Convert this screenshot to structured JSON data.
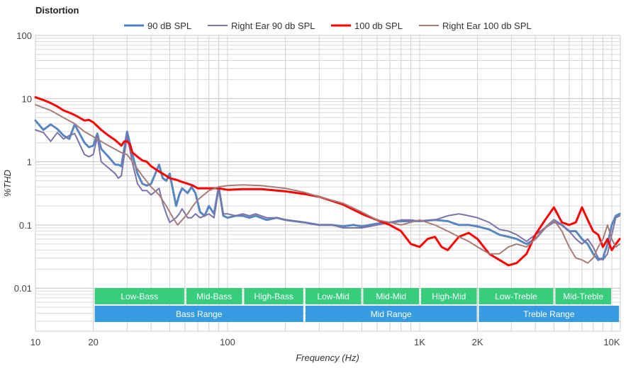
{
  "chart_data": {
    "type": "line",
    "title": "Distortion",
    "xlabel": "Frequency (Hz)",
    "ylabel": "%THD",
    "xscale": "log",
    "yscale": "log",
    "xlim": [
      10,
      11000
    ],
    "ylim": [
      0.002,
      100
    ],
    "grid": true,
    "legend_position": "top-center",
    "x_ticks": [
      {
        "value": 10,
        "label": "10"
      },
      {
        "value": 20,
        "label": "20"
      },
      {
        "value": 100,
        "label": "100"
      },
      {
        "value": 1000,
        "label": "1K"
      },
      {
        "value": 2000,
        "label": "2K"
      },
      {
        "value": 10000,
        "label": "10K"
      }
    ],
    "y_ticks": [
      {
        "value": 100,
        "label": "100"
      },
      {
        "value": 10,
        "label": "10"
      },
      {
        "value": 1,
        "label": "1"
      },
      {
        "value": 0.1,
        "label": "0.1"
      },
      {
        "value": 0.01,
        "label": "0.01"
      }
    ],
    "bands": [
      {
        "label": "Low-Bass",
        "from": 20,
        "to": 60,
        "row": 1,
        "color": "#33cc7a"
      },
      {
        "label": "Mid-Bass",
        "from": 60,
        "to": 120,
        "row": 1,
        "color": "#33cc7a"
      },
      {
        "label": "High-Bass",
        "from": 120,
        "to": 250,
        "row": 1,
        "color": "#33cc7a"
      },
      {
        "label": "Low-Mid",
        "from": 250,
        "to": 500,
        "row": 1,
        "color": "#33cc7a"
      },
      {
        "label": "Mid-Mid",
        "from": 500,
        "to": 1000,
        "row": 1,
        "color": "#33cc7a"
      },
      {
        "label": "High-Mid",
        "from": 1000,
        "to": 2000,
        "row": 1,
        "color": "#33cc7a"
      },
      {
        "label": "Low-Treble",
        "from": 2000,
        "to": 5000,
        "row": 1,
        "color": "#33cc7a"
      },
      {
        "label": "Mid-Treble",
        "from": 5000,
        "to": 10000,
        "row": 1,
        "color": "#33cc7a"
      },
      {
        "label": "Bass Range",
        "from": 20,
        "to": 250,
        "row": 2,
        "color": "#3399e0"
      },
      {
        "label": "Mid Range",
        "from": 250,
        "to": 2000,
        "row": 2,
        "color": "#3399e0"
      },
      {
        "label": "Treble Range",
        "from": 2000,
        "to": 11000,
        "row": 2,
        "color": "#3399e0"
      }
    ],
    "series": [
      {
        "name": "90 dB SPL",
        "color": "#4f81bd",
        "width": 3,
        "x": [
          10,
          11,
          12,
          13,
          14,
          15,
          16,
          18,
          19,
          20,
          21,
          22,
          24,
          26,
          27,
          28,
          30,
          32,
          34,
          36,
          38,
          40,
          44,
          46,
          48,
          50,
          54,
          56,
          58,
          62,
          65,
          68,
          72,
          76,
          80,
          85,
          90,
          95,
          100,
          110,
          120,
          130,
          140,
          160,
          180,
          200,
          250,
          300,
          350,
          400,
          450,
          500,
          600,
          700,
          800,
          900,
          1000,
          1200,
          1400,
          1600,
          1800,
          2000,
          2300,
          2600,
          2900,
          3200,
          3600,
          4000,
          4500,
          5000,
          5500,
          6000,
          6500,
          7000,
          7500,
          8000,
          8500,
          9000,
          9500,
          10000,
          10500,
          11000
        ],
        "y": [
          4.5,
          3.2,
          3.9,
          3.3,
          2.6,
          2.3,
          3.9,
          2.0,
          1.7,
          1.8,
          2.8,
          1.6,
          1.2,
          0.9,
          0.9,
          0.85,
          3.0,
          1.3,
          0.65,
          0.45,
          0.42,
          0.45,
          0.9,
          0.55,
          0.5,
          0.65,
          0.2,
          0.3,
          0.38,
          0.32,
          0.4,
          0.32,
          0.16,
          0.14,
          0.2,
          0.15,
          0.4,
          0.14,
          0.13,
          0.14,
          0.14,
          0.13,
          0.14,
          0.12,
          0.13,
          0.12,
          0.11,
          0.1,
          0.1,
          0.095,
          0.1,
          0.095,
          0.105,
          0.11,
          0.115,
          0.115,
          0.115,
          0.12,
          0.115,
          0.1,
          0.1,
          0.095,
          0.085,
          0.07,
          0.065,
          0.06,
          0.05,
          0.06,
          0.09,
          0.12,
          0.1,
          0.08,
          0.08,
          0.06,
          0.05,
          0.035,
          0.028,
          0.03,
          0.05,
          0.1,
          0.14,
          0.15
        ]
      },
      {
        "name": "Right Ear 90 db SPL",
        "color": "#7a73a8",
        "width": 2,
        "x": [
          10,
          11,
          12,
          13,
          14,
          15,
          16,
          18,
          19,
          20,
          21,
          22,
          24,
          26,
          27,
          28,
          30,
          32,
          34,
          36,
          38,
          40,
          44,
          46,
          48,
          50,
          54,
          56,
          58,
          62,
          65,
          68,
          72,
          76,
          80,
          85,
          90,
          95,
          100,
          110,
          120,
          130,
          140,
          160,
          180,
          200,
          250,
          300,
          350,
          400,
          450,
          500,
          600,
          700,
          800,
          900,
          1000,
          1200,
          1400,
          1600,
          1800,
          2000,
          2300,
          2600,
          2900,
          3200,
          3600,
          4000,
          4500,
          5000,
          5500,
          6000,
          6500,
          7000,
          7500,
          8000,
          8500,
          9000,
          9500,
          10000,
          10500,
          11000
        ],
        "y": [
          3.2,
          2.9,
          2.1,
          2.9,
          2.3,
          2.6,
          2.8,
          1.3,
          1.2,
          1.3,
          2.5,
          1.0,
          0.8,
          0.65,
          0.55,
          0.6,
          2.6,
          0.95,
          0.45,
          0.35,
          0.35,
          0.3,
          0.38,
          0.22,
          0.15,
          0.11,
          0.13,
          0.15,
          0.18,
          0.13,
          0.13,
          0.15,
          0.13,
          0.14,
          0.15,
          0.13,
          0.38,
          0.15,
          0.15,
          0.14,
          0.15,
          0.14,
          0.15,
          0.13,
          0.13,
          0.12,
          0.11,
          0.1,
          0.1,
          0.09,
          0.09,
          0.09,
          0.1,
          0.11,
          0.12,
          0.12,
          0.115,
          0.12,
          0.14,
          0.15,
          0.14,
          0.13,
          0.11,
          0.085,
          0.08,
          0.07,
          0.055,
          0.07,
          0.09,
          0.11,
          0.1,
          0.08,
          0.06,
          0.05,
          0.06,
          0.045,
          0.03,
          0.028,
          0.035,
          0.07,
          0.13,
          0.14
        ]
      },
      {
        "name": "100 db SPL",
        "color": "#ff0000",
        "width": 3,
        "x": [
          10,
          11,
          12,
          13,
          14,
          15,
          16,
          18,
          19,
          20,
          22,
          24,
          26,
          28,
          29,
          30,
          31,
          32,
          34,
          36,
          38,
          40,
          44,
          48,
          50,
          54,
          58,
          62,
          66,
          70,
          80,
          90,
          100,
          120,
          150,
          200,
          250,
          300,
          400,
          500,
          600,
          700,
          800,
          900,
          1000,
          1100,
          1200,
          1300,
          1400,
          1600,
          1800,
          2000,
          2300,
          2600,
          2900,
          3200,
          3600,
          4000,
          4500,
          5000,
          5500,
          6000,
          6500,
          7000,
          7500,
          8000,
          8500,
          9000,
          9500,
          10000,
          10500,
          11000
        ],
        "y": [
          10.5,
          9.5,
          8.5,
          7.5,
          6.5,
          6.0,
          5.5,
          4.5,
          4.6,
          4.2,
          3.2,
          2.6,
          2.2,
          1.8,
          2.1,
          2.1,
          1.9,
          1.4,
          1.2,
          1.05,
          1.0,
          0.85,
          0.7,
          0.6,
          0.55,
          0.52,
          0.48,
          0.45,
          0.42,
          0.38,
          0.38,
          0.38,
          0.36,
          0.37,
          0.37,
          0.34,
          0.31,
          0.28,
          0.21,
          0.15,
          0.12,
          0.1,
          0.08,
          0.05,
          0.045,
          0.06,
          0.065,
          0.045,
          0.04,
          0.065,
          0.075,
          0.06,
          0.035,
          0.028,
          0.023,
          0.025,
          0.035,
          0.07,
          0.12,
          0.19,
          0.11,
          0.1,
          0.11,
          0.19,
          0.12,
          0.08,
          0.07,
          0.045,
          0.06,
          0.04,
          0.05,
          0.06
        ]
      },
      {
        "name": "Right Ear 100 db SPL",
        "color": "#a87c7a",
        "width": 2,
        "x": [
          10,
          12,
          14,
          16,
          18,
          20,
          24,
          28,
          30,
          32,
          36,
          40,
          44,
          48,
          52,
          55,
          58,
          62,
          66,
          70,
          80,
          90,
          100,
          120,
          150,
          200,
          250,
          300,
          400,
          500,
          600,
          700,
          800,
          900,
          1000,
          1200,
          1400,
          1600,
          1800,
          2000,
          2300,
          2600,
          2900,
          3200,
          3600,
          4000,
          4500,
          5000,
          5500,
          6000,
          6500,
          7000,
          7500,
          8000,
          8500,
          9000,
          9500,
          10000,
          10500,
          11000
        ],
        "y": [
          8.0,
          6.5,
          5.0,
          4.0,
          3.0,
          2.5,
          1.8,
          1.4,
          1.3,
          1.0,
          0.6,
          0.4,
          0.3,
          0.2,
          0.13,
          0.1,
          0.12,
          0.15,
          0.2,
          0.25,
          0.35,
          0.4,
          0.42,
          0.43,
          0.42,
          0.38,
          0.33,
          0.28,
          0.22,
          0.16,
          0.12,
          0.11,
          0.1,
          0.11,
          0.12,
          0.1,
          0.08,
          0.065,
          0.055,
          0.045,
          0.035,
          0.035,
          0.045,
          0.05,
          0.045,
          0.06,
          0.09,
          0.12,
          0.08,
          0.045,
          0.03,
          0.028,
          0.025,
          0.03,
          0.045,
          0.06,
          0.1,
          0.06,
          0.045,
          0.05
        ]
      }
    ]
  }
}
